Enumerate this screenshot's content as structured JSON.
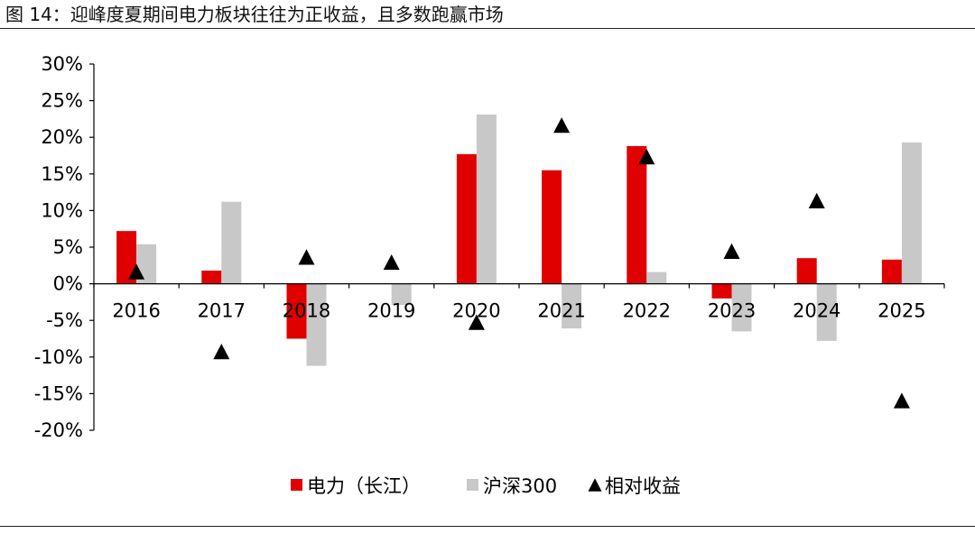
{
  "figure": {
    "title": "图 14：迎峰度夏期间电力板块往往为正收益，且多数跑赢市场"
  },
  "chart_data": {
    "type": "bar",
    "categories": [
      "2016",
      "2017",
      "2018",
      "2019",
      "2020",
      "2021",
      "2022",
      "2023",
      "2024",
      "2025"
    ],
    "series": [
      {
        "name": "电力（长江）",
        "kind": "bar",
        "color": "#e00000",
        "values": [
          7.2,
          1.8,
          -7.5,
          0.0,
          17.7,
          15.5,
          18.8,
          -2.0,
          3.5,
          3.3
        ]
      },
      {
        "name": "沪深300",
        "kind": "bar",
        "color": "#c8c8c8",
        "values": [
          5.4,
          11.2,
          -11.2,
          -2.9,
          23.1,
          -6.1,
          1.6,
          -6.5,
          -7.8,
          19.3
        ]
      },
      {
        "name": "相对收益",
        "kind": "marker",
        "color": "#000000",
        "values": [
          1.6,
          -9.3,
          3.6,
          2.9,
          -5.3,
          21.6,
          17.3,
          4.4,
          11.3,
          -16.0
        ]
      }
    ],
    "yticks": [
      "30%",
      "25%",
      "20%",
      "15%",
      "10%",
      "5%",
      "0%",
      "-5%",
      "-10%",
      "-15%",
      "-20%"
    ],
    "ylim": [
      -20,
      30
    ],
    "grid": false,
    "legend_position": "bottom"
  }
}
